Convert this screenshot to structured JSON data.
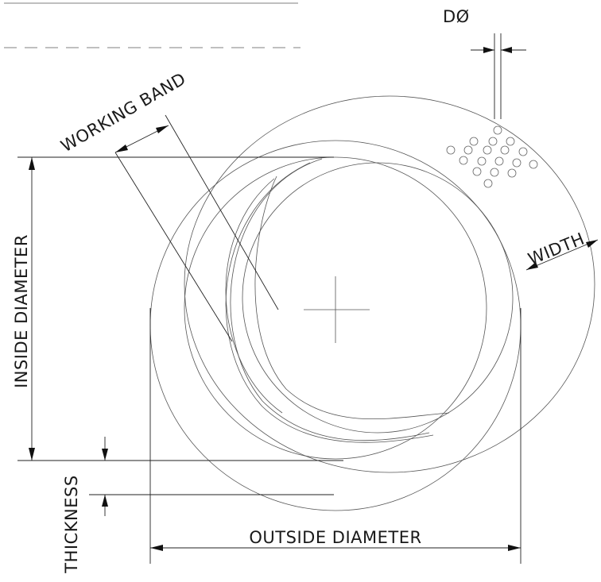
{
  "labels": {
    "hole_diameter": "DØ",
    "working_band": "WORKING BAND",
    "width": "WIDTH",
    "inside_diameter": "INSIDE DIAMETER",
    "thickness": "THICKNESS",
    "outside_diameter": "OUTSIDE DIAMETER"
  },
  "colors": {
    "line": "#555555",
    "dimension": "#222222",
    "text": "#1a1a1a",
    "background": "#ffffff"
  }
}
